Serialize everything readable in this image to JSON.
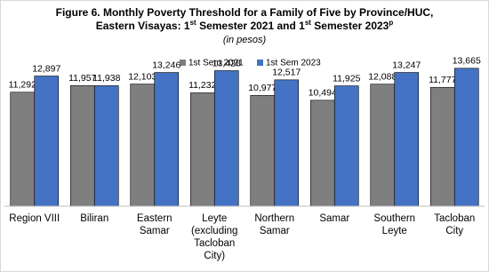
{
  "chart_data": {
    "type": "bar",
    "title": {
      "line1": "Figure 6. Monthly Poverty Threshold for a Family of Five by Province/HUC,",
      "line2": [
        {
          "text": "Eastern Visayas: 1"
        },
        {
          "text": "st",
          "sup": true
        },
        {
          "text": " Semester 2021 and 1"
        },
        {
          "text": "st",
          "sup": true
        },
        {
          "text": " Semester 2023"
        },
        {
          "text": "p",
          "sup": true
        }
      ]
    },
    "subtitle": "(in pesos)",
    "categories": [
      "Region VIII",
      "Biliran",
      "Eastern Samar",
      "Leyte (excluding Tacloban City)",
      "Northern Samar",
      "Samar",
      "Southern Leyte",
      "Tacloban City"
    ],
    "series": [
      {
        "name": "1st Sem 2021",
        "color": "#7f7f7f",
        "values": [
          11292,
          11957,
          12103,
          11232,
          10977,
          10494,
          12088,
          11777
        ],
        "value_labels": [
          "11,292",
          "11,957",
          "12,103",
          "11,232",
          "10,977",
          "10,494",
          "12,088",
          "11,777"
        ]
      },
      {
        "name": "1st Sem 2023",
        "color": "#4472c4",
        "values": [
          12897,
          11938,
          13246,
          13428,
          12517,
          11925,
          13247,
          13665
        ],
        "value_labels": [
          "12,897",
          "11,938",
          "13,246",
          "13,428",
          "12,517",
          "11,925",
          "13,247",
          "13,665"
        ]
      }
    ],
    "ylim": [
      0,
      14000
    ],
    "legend": "top"
  }
}
